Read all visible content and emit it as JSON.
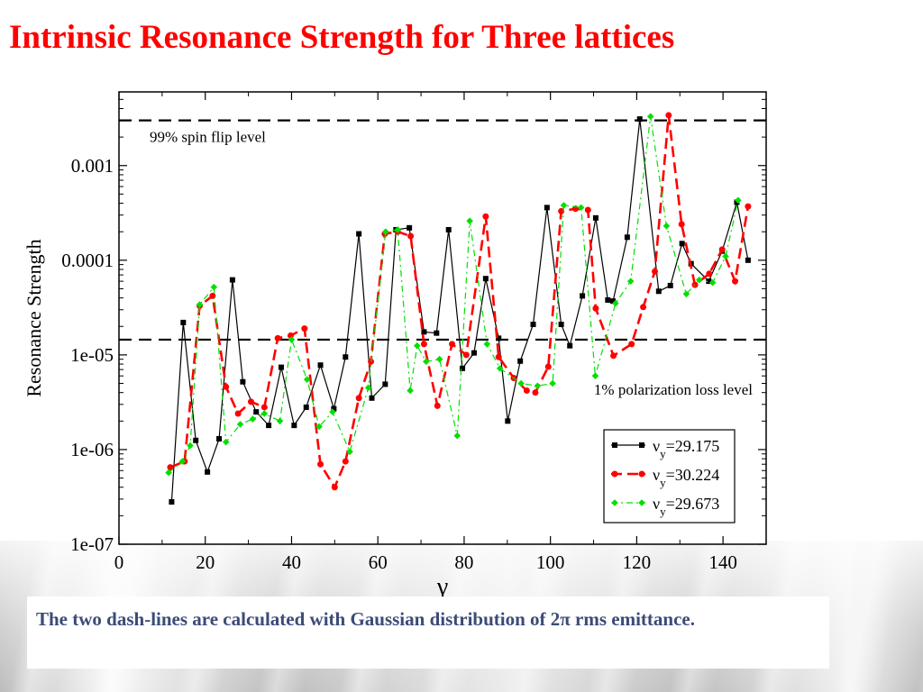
{
  "slide": {
    "title": "Intrinsic Resonance Strength for Three lattices",
    "caption": "The two dash-lines are calculated with Gaussian distribution of 2π rms emittance.",
    "title_color": "#ff0000",
    "caption_color": "#3b4b78"
  },
  "chart_data": {
    "type": "line",
    "xlabel": "γ",
    "ylabel": "Resonance Strength",
    "xlim": [
      0,
      150
    ],
    "ylim": [
      1e-07,
      0.006
    ],
    "yscale": "log",
    "grid": false,
    "legend_position": "bottom-right",
    "x_ticks": [
      0,
      20,
      40,
      60,
      80,
      100,
      120,
      140
    ],
    "y_ticks": [
      {
        "value": 1e-07,
        "label": "1e-07"
      },
      {
        "value": 1e-06,
        "label": "1e-06"
      },
      {
        "value": 1e-05,
        "label": "1e-05"
      },
      {
        "value": 0.0001,
        "label": "0.0001"
      },
      {
        "value": 0.001,
        "label": "0.001"
      }
    ],
    "reference_lines": [
      {
        "label": "99% spin flip level",
        "y": 0.003
      },
      {
        "label": "1% polarization loss level",
        "y": 1.45e-05
      }
    ],
    "series": [
      {
        "name": "ν",
        "name_sub": "y",
        "name_value": "=29.175",
        "color": "#000000",
        "marker": "square",
        "dash": "solid",
        "x": [
          12.2,
          14.9,
          17.8,
          20.5,
          23.2,
          26.3,
          28.7,
          31.8,
          34.7,
          37.6,
          40.6,
          43.4,
          46.7,
          49.8,
          52.5,
          55.6,
          58.6,
          61.7,
          64.2,
          67.3,
          70.7,
          73.6,
          76.4,
          79.6,
          82.3,
          85.0,
          88,
          90.1,
          93,
          96,
          99.2,
          102.5,
          104.5,
          107.4,
          110.5,
          113.3,
          114.5,
          117.8,
          120.7,
          125.1,
          127.8,
          130.5,
          132.6,
          136.7,
          139.8,
          143.2,
          145.8
        ],
        "y": [
          2.8e-07,
          2.2e-05,
          1.25e-06,
          5.8e-07,
          1.3e-06,
          6.2e-05,
          5.2e-06,
          2.5e-06,
          1.8e-06,
          7.4e-06,
          1.8e-06,
          2.8e-06,
          7.8e-06,
          2.7e-06,
          9.5e-06,
          0.00019,
          3.5e-06,
          4.9e-06,
          0.00021,
          0.00022,
          1.75e-05,
          1.7e-05,
          0.00021,
          7.2e-06,
          1.05e-05,
          6.4e-05,
          1.5e-05,
          2e-06,
          8.6e-06,
          2.1e-05,
          0.00036,
          2.1e-05,
          1.25e-05,
          4.2e-05,
          0.00028,
          3.8e-05,
          3.7e-05,
          0.000175,
          0.0031,
          4.7e-05,
          5.4e-05,
          0.00015,
          9.2e-05,
          6e-05,
          0.000125,
          0.00041,
          0.0001
        ]
      },
      {
        "name": "ν",
        "name_sub": "y",
        "name_value": "=30.224",
        "color": "#ff0000",
        "marker": "circle",
        "dash": "dashed",
        "x": [
          11.9,
          15.2,
          18.7,
          21.7,
          24.8,
          27.6,
          30.6,
          33.7,
          36.8,
          39.8,
          43.0,
          46.7,
          50.0,
          52.5,
          55.6,
          58.4,
          61.6,
          64.6,
          67.6,
          70.7,
          73.8,
          77.2,
          80.5,
          85,
          88,
          91.5,
          94.5,
          96.5,
          99.5,
          102.5,
          105.8,
          108.7,
          110.5,
          114.6,
          118.8,
          121.5,
          124.2,
          127.4,
          130.4,
          133.5,
          136.8,
          139.8,
          142.8,
          145.8
        ],
        "y": [
          6.5e-07,
          7.5e-07,
          3.3e-05,
          4.2e-05,
          4.6e-06,
          2.4e-06,
          3.2e-06,
          2.8e-06,
          1.5e-05,
          1.6e-05,
          1.9e-05,
          7e-07,
          4e-07,
          7.5e-07,
          3.5e-06,
          8.5e-06,
          0.00019,
          0.0002,
          0.00018,
          1.3e-05,
          2.9e-06,
          1.3e-05,
          1e-05,
          0.00029,
          9.5e-06,
          5.7e-06,
          4.2e-06,
          4e-06,
          7.5e-06,
          0.00033,
          0.00035,
          0.00034,
          3.1e-05,
          9.8e-06,
          1.3e-05,
          3.2e-05,
          7.6e-05,
          0.0034,
          0.00024,
          5.5e-05,
          7.2e-05,
          0.00013,
          6e-05,
          0.00037
        ]
      },
      {
        "name": "ν",
        "name_sub": "y",
        "name_value": "=29.673",
        "color": "#00e000",
        "marker": "diamond",
        "dash": "dashdot",
        "x": [
          11.5,
          14.7,
          16.5,
          18.7,
          22.0,
          24.8,
          28.1,
          31.0,
          33.7,
          37.3,
          40.0,
          43.6,
          46.4,
          49.5,
          53.5,
          57.8,
          61.8,
          64.6,
          67.5,
          69.1,
          71.2,
          74.3,
          78.4,
          81.3,
          85.3,
          88.3,
          93.2,
          97.0,
          100.5,
          103.1,
          107.1,
          110.4,
          115.1,
          118.6,
          123.2,
          126.9,
          131.5,
          134.5,
          137.6,
          140.6,
          143.5
        ],
        "y": [
          5.7e-07,
          7.5e-07,
          1.1e-06,
          3.4e-05,
          5.2e-05,
          1.2e-06,
          1.85e-06,
          2.1e-06,
          2.4e-06,
          2e-06,
          1.45e-05,
          5.5e-06,
          1.75e-06,
          2.5e-06,
          9.5e-07,
          4.5e-06,
          0.0002,
          0.00021,
          4.2e-06,
          1.25e-05,
          8.5e-06,
          9e-06,
          1.4e-06,
          0.00026,
          1.3e-05,
          7.2e-06,
          5e-06,
          4.7e-06,
          5e-06,
          0.00038,
          0.00036,
          6e-06,
          3.5e-05,
          6e-05,
          0.0033,
          0.00023,
          4.4e-05,
          6.2e-05,
          5.8e-05,
          0.00011,
          0.00043
        ]
      }
    ]
  }
}
